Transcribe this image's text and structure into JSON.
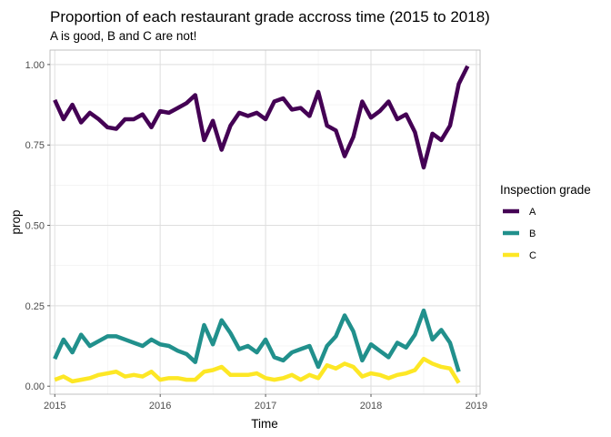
{
  "chart_data": {
    "type": "line",
    "title": "Proportion of each restaurant grade accross time (2015 to 2018)",
    "subtitle": "A is good, B and C are not!",
    "xlabel": "Time",
    "ylabel": "prop",
    "xlim": [
      2014.955,
      2019.035
    ],
    "ylim": [
      -0.025,
      1.045
    ],
    "x_ticks": [
      {
        "value": 2015,
        "label": "2015"
      },
      {
        "value": 2016,
        "label": "2016"
      },
      {
        "value": 2017,
        "label": "2017"
      },
      {
        "value": 2018,
        "label": "2018"
      },
      {
        "value": 2019,
        "label": "2019"
      }
    ],
    "y_ticks": [
      {
        "value": 0.0,
        "label": "0.00"
      },
      {
        "value": 0.25,
        "label": "0.25"
      },
      {
        "value": 0.5,
        "label": "0.50"
      },
      {
        "value": 0.75,
        "label": "0.75"
      },
      {
        "value": 1.0,
        "label": "1.00"
      }
    ],
    "grid": true,
    "legend_position": "right",
    "legend_title": "Inspection grade",
    "series": [
      {
        "name": "A",
        "color": "#440154",
        "x": [
          2015.0,
          2015.083,
          2015.167,
          2015.25,
          2015.333,
          2015.417,
          2015.5,
          2015.583,
          2015.667,
          2015.75,
          2015.833,
          2015.917,
          2016.0,
          2016.083,
          2016.167,
          2016.25,
          2016.333,
          2016.417,
          2016.5,
          2016.583,
          2016.667,
          2016.75,
          2016.833,
          2016.917,
          2017.0,
          2017.083,
          2017.167,
          2017.25,
          2017.333,
          2017.417,
          2017.5,
          2017.583,
          2017.667,
          2017.75,
          2017.833,
          2017.917,
          2018.0,
          2018.083,
          2018.167,
          2018.25,
          2018.333,
          2018.417,
          2018.5,
          2018.583,
          2018.667,
          2018.75,
          2018.833,
          2018.917
        ],
        "values": [
          0.89,
          0.83,
          0.875,
          0.82,
          0.85,
          0.83,
          0.805,
          0.8,
          0.83,
          0.83,
          0.845,
          0.805,
          0.855,
          0.85,
          0.865,
          0.88,
          0.905,
          0.765,
          0.825,
          0.735,
          0.81,
          0.85,
          0.84,
          0.85,
          0.83,
          0.885,
          0.895,
          0.86,
          0.865,
          0.84,
          0.915,
          0.81,
          0.795,
          0.715,
          0.775,
          0.885,
          0.835,
          0.855,
          0.885,
          0.83,
          0.845,
          0.79,
          0.68,
          0.785,
          0.765,
          0.81,
          0.94,
          0.995
        ]
      },
      {
        "name": "B",
        "color": "#21908C",
        "x": [
          2015.0,
          2015.083,
          2015.167,
          2015.25,
          2015.333,
          2015.417,
          2015.5,
          2015.583,
          2015.667,
          2015.75,
          2015.833,
          2015.917,
          2016.0,
          2016.083,
          2016.167,
          2016.25,
          2016.333,
          2016.417,
          2016.5,
          2016.583,
          2016.667,
          2016.75,
          2016.833,
          2016.917,
          2017.0,
          2017.083,
          2017.167,
          2017.25,
          2017.333,
          2017.417,
          2017.5,
          2017.583,
          2017.667,
          2017.75,
          2017.833,
          2017.917,
          2018.0,
          2018.083,
          2018.167,
          2018.25,
          2018.333,
          2018.417,
          2018.5,
          2018.583,
          2018.667,
          2018.75,
          2018.833
        ],
        "values": [
          0.085,
          0.145,
          0.105,
          0.16,
          0.125,
          0.14,
          0.155,
          0.155,
          0.145,
          0.135,
          0.125,
          0.145,
          0.13,
          0.125,
          0.11,
          0.1,
          0.075,
          0.19,
          0.13,
          0.205,
          0.165,
          0.115,
          0.125,
          0.105,
          0.145,
          0.09,
          0.08,
          0.105,
          0.115,
          0.125,
          0.06,
          0.125,
          0.155,
          0.22,
          0.17,
          0.08,
          0.13,
          0.11,
          0.09,
          0.135,
          0.12,
          0.16,
          0.235,
          0.145,
          0.175,
          0.135,
          0.045
        ]
      },
      {
        "name": "C",
        "color": "#FDE725",
        "x": [
          2015.0,
          2015.083,
          2015.167,
          2015.25,
          2015.333,
          2015.417,
          2015.5,
          2015.583,
          2015.667,
          2015.75,
          2015.833,
          2015.917,
          2016.0,
          2016.083,
          2016.167,
          2016.25,
          2016.333,
          2016.417,
          2016.5,
          2016.583,
          2016.667,
          2016.75,
          2016.833,
          2016.917,
          2017.0,
          2017.083,
          2017.167,
          2017.25,
          2017.333,
          2017.417,
          2017.5,
          2017.583,
          2017.667,
          2017.75,
          2017.833,
          2017.917,
          2018.0,
          2018.083,
          2018.167,
          2018.25,
          2018.333,
          2018.417,
          2018.5,
          2018.583,
          2018.667,
          2018.75,
          2018.833
        ],
        "values": [
          0.02,
          0.03,
          0.015,
          0.02,
          0.025,
          0.035,
          0.04,
          0.045,
          0.03,
          0.035,
          0.03,
          0.045,
          0.02,
          0.025,
          0.025,
          0.02,
          0.02,
          0.045,
          0.05,
          0.06,
          0.035,
          0.035,
          0.035,
          0.04,
          0.025,
          0.02,
          0.025,
          0.035,
          0.02,
          0.035,
          0.025,
          0.065,
          0.055,
          0.07,
          0.06,
          0.03,
          0.04,
          0.035,
          0.025,
          0.035,
          0.04,
          0.05,
          0.085,
          0.07,
          0.06,
          0.055,
          0.01
        ]
      }
    ]
  }
}
